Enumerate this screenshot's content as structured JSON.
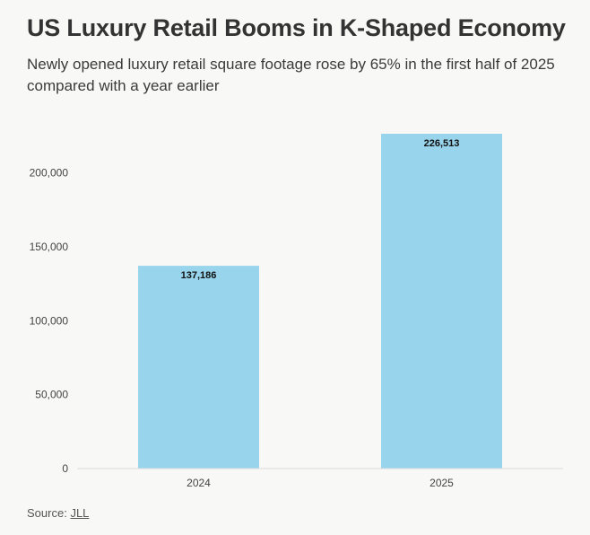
{
  "title": "US Luxury Retail Booms in K-Shaped Economy",
  "subtitle": "Newly opened luxury retail square footage rose by 65% in the first half of 2025 compared with a year earlier",
  "source": {
    "label": "Source:",
    "link_text": "JLL"
  },
  "colors": {
    "bar": "#98d5ec",
    "axis_text": "#444444",
    "data_label": "#111111",
    "baseline": "#dddddd"
  },
  "chart_data": {
    "type": "bar",
    "categories": [
      "2024",
      "2025"
    ],
    "values": [
      137186,
      226513
    ],
    "value_labels": [
      "137,186",
      "226,513"
    ],
    "y_ticks": [
      0,
      50000,
      100000,
      150000,
      200000
    ],
    "y_tick_labels": [
      "0",
      "50,000",
      "100,000",
      "150,000",
      "200,000"
    ],
    "ylim": [
      0,
      226513
    ],
    "xlabel": "",
    "ylabel": "",
    "grid": false,
    "legend": "none"
  }
}
